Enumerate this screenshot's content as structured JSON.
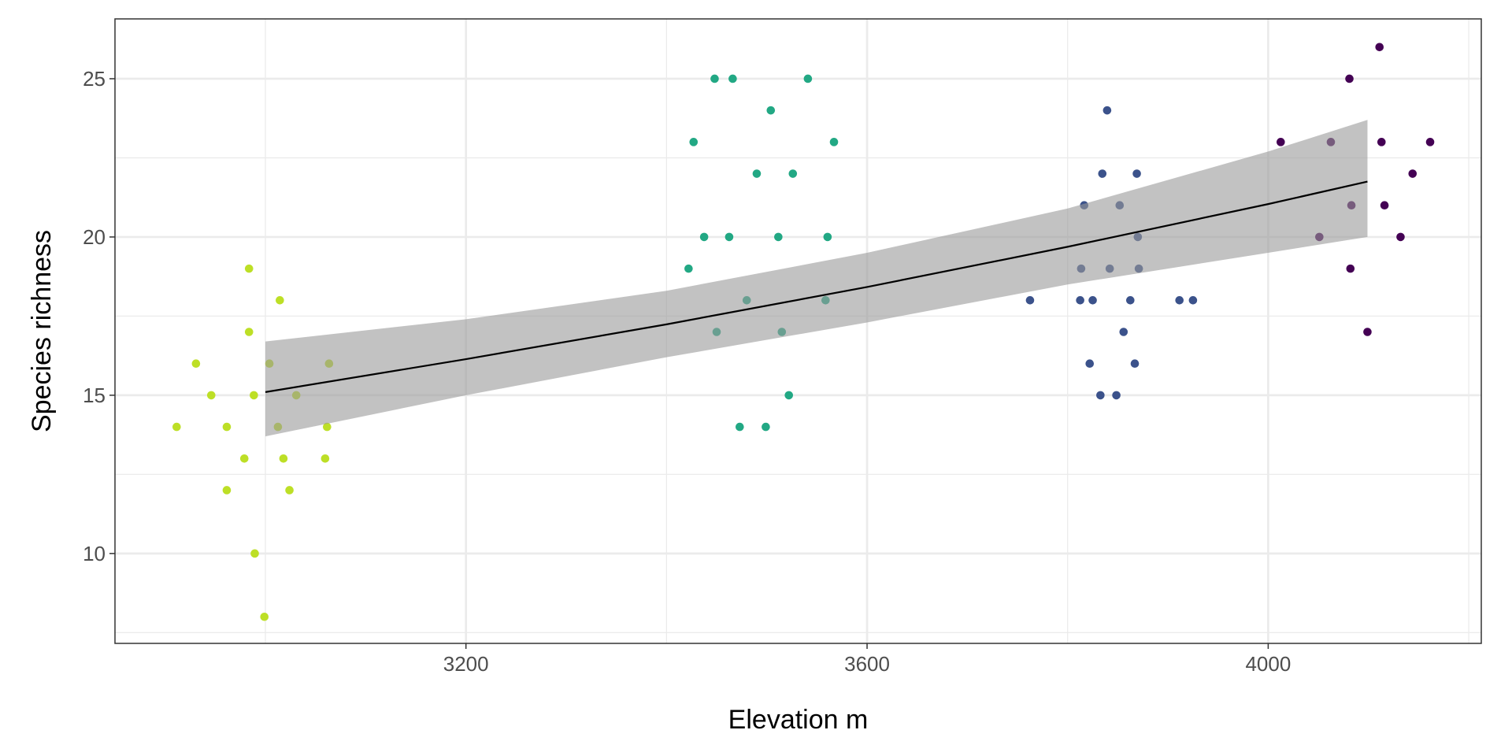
{
  "chart_data": {
    "type": "scatter",
    "title": "",
    "xlabel": "Elevation m",
    "ylabel": "Species richness",
    "xlim": [
      2850,
      4212.5
    ],
    "ylim": [
      7.16,
      26.89
    ],
    "x_ticks": [
      3200,
      3600,
      4000
    ],
    "x_minor_ticks": [
      3000,
      3400,
      3800,
      4200
    ],
    "y_ticks": [
      10,
      15,
      20,
      25
    ],
    "y_minor_ticks": [
      7.5,
      12.5,
      17.5,
      22.5
    ],
    "grid": true,
    "legend": "none",
    "groups": [
      {
        "color": "#bddf26",
        "points": [
          [
            2911.5,
            14
          ],
          [
            2930.8,
            16
          ],
          [
            2946,
            15
          ],
          [
            2961.5,
            14
          ],
          [
            2961.5,
            12
          ],
          [
            2979,
            13
          ],
          [
            2983.7,
            19
          ],
          [
            2983.7,
            17
          ],
          [
            2988.5,
            15
          ],
          [
            2989.4,
            10
          ],
          [
            2999,
            8
          ],
          [
            3004,
            16
          ],
          [
            3012.5,
            14
          ],
          [
            3014.4,
            18
          ],
          [
            3018,
            13
          ],
          [
            3024,
            12
          ],
          [
            3030.8,
            15
          ],
          [
            3059.6,
            13
          ],
          [
            3061.5,
            14
          ],
          [
            3063.5,
            16
          ]
        ]
      },
      {
        "color": "#22a884",
        "points": [
          [
            3422,
            19
          ],
          [
            3427,
            23
          ],
          [
            3437.5,
            20
          ],
          [
            3448,
            25
          ],
          [
            3450,
            17
          ],
          [
            3462.5,
            20
          ],
          [
            3466,
            25
          ],
          [
            3473,
            14
          ],
          [
            3480,
            18
          ],
          [
            3490,
            22
          ],
          [
            3499,
            14
          ],
          [
            3504,
            24
          ],
          [
            3511.5,
            20
          ],
          [
            3515,
            17
          ],
          [
            3522,
            15
          ],
          [
            3526,
            22
          ],
          [
            3541,
            25
          ],
          [
            3558.6,
            18
          ],
          [
            3560.6,
            20
          ],
          [
            3567,
            23
          ]
        ]
      },
      {
        "color": "#3b528b",
        "points": [
          [
            3762.5,
            18
          ],
          [
            3812.5,
            18
          ],
          [
            3813.5,
            19
          ],
          [
            3816.5,
            21
          ],
          [
            3822,
            16
          ],
          [
            3825,
            18
          ],
          [
            3832.7,
            15
          ],
          [
            3834.6,
            22
          ],
          [
            3839.4,
            24
          ],
          [
            3842,
            19
          ],
          [
            3848.6,
            15
          ],
          [
            3851.9,
            21
          ],
          [
            3855.8,
            17
          ],
          [
            3862.5,
            18
          ],
          [
            3867,
            16
          ],
          [
            3869,
            22
          ],
          [
            3870,
            20
          ],
          [
            3871,
            19
          ],
          [
            3911.5,
            18
          ],
          [
            3925,
            18
          ]
        ]
      },
      {
        "color": "#440154",
        "points": [
          [
            4012.5,
            23
          ],
          [
            4051,
            20
          ],
          [
            4062.5,
            23
          ],
          [
            4081,
            25
          ],
          [
            4082,
            19
          ],
          [
            4083,
            21
          ],
          [
            4099,
            17
          ],
          [
            4111,
            26
          ],
          [
            4113,
            23
          ],
          [
            4116,
            21
          ],
          [
            4132,
            20
          ],
          [
            4144,
            22
          ],
          [
            4161.5,
            23
          ]
        ]
      }
    ],
    "fit": {
      "color": "#000000",
      "band_color": "#999999",
      "x": [
        3000,
        3200,
        3400,
        3600,
        3800,
        4000,
        4099
      ],
      "y": [
        15.1,
        16.14,
        17.24,
        18.42,
        19.69,
        21.04,
        21.75
      ],
      "lower": [
        13.7,
        15.0,
        16.2,
        17.3,
        18.5,
        19.5,
        20.0
      ],
      "upper": [
        16.7,
        17.4,
        18.3,
        19.5,
        20.9,
        22.7,
        23.7
      ]
    }
  }
}
